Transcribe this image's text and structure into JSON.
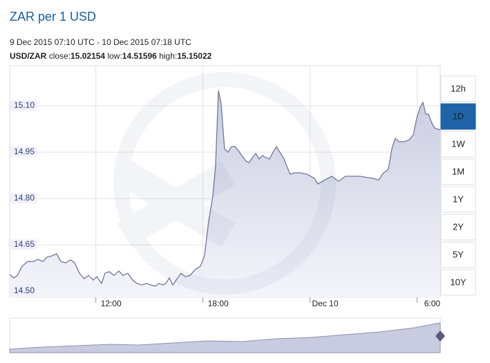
{
  "chart_data": {
    "type": "area",
    "title": "ZAR per 1 USD",
    "subtitle": "9 Dec 2015 07:10 UTC - 10 Dec 2015 07:18 UTC",
    "pair": "USD/ZAR",
    "stats": [
      {
        "label": "close:",
        "value": 15.02154
      },
      {
        "label": "low:",
        "value": 14.51596
      },
      {
        "label": "high:",
        "value": 15.15022
      }
    ],
    "x": [
      7.17,
      7.4,
      7.6,
      7.87,
      8.18,
      8.49,
      8.76,
      9.03,
      9.26,
      9.53,
      9.8,
      10.04,
      10.31,
      10.58,
      10.81,
      11.08,
      11.35,
      11.58,
      11.86,
      12.05,
      12.32,
      12.51,
      12.75,
      13.02,
      13.29,
      13.52,
      13.79,
      14.06,
      14.3,
      14.57,
      14.84,
      15.07,
      15.34,
      15.54,
      15.77,
      15.92,
      16.12,
      16.31,
      16.5,
      16.77,
      17.01,
      17.28,
      17.55,
      17.86,
      18.09,
      18.32,
      18.55,
      18.71,
      18.87,
      19.02,
      19.21,
      19.41,
      19.6,
      19.8,
      19.99,
      20.18,
      20.38,
      20.57,
      20.77,
      20.96,
      21.15,
      21.35,
      21.54,
      21.73,
      21.93,
      22.12,
      22.31,
      22.51,
      22.7,
      22.89,
      23.09,
      23.47,
      23.86,
      24.25,
      24.44,
      24.83,
      25.22,
      25.6,
      25.99,
      26.77,
      27.54,
      27.85,
      28.12,
      28.39,
      28.59,
      28.78,
      28.98,
      29.29,
      29.56,
      29.79,
      29.99,
      30.18,
      30.33,
      30.49,
      30.64,
      30.83,
      30.99,
      31.3
    ],
    "values": [
      14.554,
      14.543,
      14.551,
      14.581,
      14.596,
      14.596,
      14.603,
      14.596,
      14.61,
      14.614,
      14.621,
      14.596,
      14.592,
      14.601,
      14.592,
      14.558,
      14.54,
      14.551,
      14.536,
      14.547,
      14.525,
      14.558,
      14.563,
      14.551,
      14.565,
      14.551,
      14.558,
      14.536,
      14.525,
      14.52,
      14.525,
      14.52,
      14.516,
      14.525,
      14.52,
      14.525,
      14.543,
      14.52,
      14.536,
      14.558,
      14.547,
      14.551,
      14.569,
      14.581,
      14.614,
      14.726,
      14.805,
      14.905,
      15.15,
      15.107,
      14.961,
      14.95,
      14.968,
      14.968,
      14.955,
      14.939,
      14.923,
      14.916,
      14.932,
      14.946,
      14.928,
      14.939,
      14.932,
      14.928,
      14.95,
      14.968,
      14.95,
      14.932,
      14.905,
      14.878,
      14.883,
      14.883,
      14.878,
      14.865,
      14.847,
      14.86,
      14.872,
      14.856,
      14.872,
      14.872,
      14.865,
      14.86,
      14.883,
      14.894,
      14.961,
      14.995,
      14.984,
      14.984,
      14.99,
      15.006,
      15.062,
      15.096,
      15.111,
      15.073,
      15.073,
      15.044,
      15.028,
      15.022
    ],
    "color": "#70769c",
    "fill_color": "#d3d6e6",
    "xlim": [
      7.17,
      31.3
    ],
    "xticks": [
      {
        "value": 12,
        "label": "12:00"
      },
      {
        "value": 18,
        "label": "18:00"
      },
      {
        "value": 24,
        "label": "Dec 10"
      },
      {
        "value": 30,
        "label": "6:00"
      }
    ],
    "ylim": [
      14.48,
      15.23
    ],
    "yticks": [
      {
        "value": 14.5,
        "label": "14.50"
      },
      14.65,
      {
        "value": 14.8,
        "label": "14.80"
      },
      14.95,
      {
        "value": 15.1,
        "label": "15.10"
      }
    ],
    "grid": true,
    "range_buttons": [
      "12h",
      "1D",
      "1W",
      "1M",
      "1Y",
      "2Y",
      "5Y",
      "10Y"
    ],
    "selected_button": 1
  }
}
